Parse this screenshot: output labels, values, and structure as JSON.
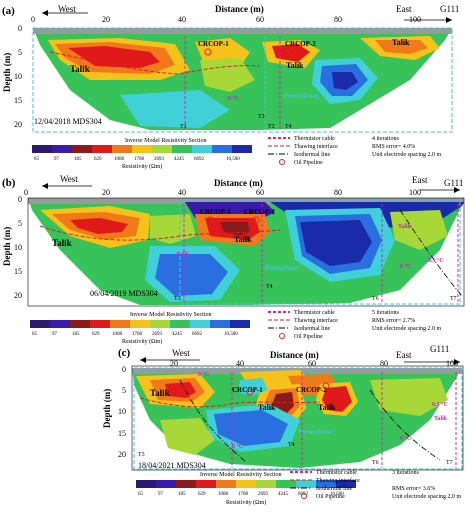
{
  "panels": [
    {
      "letter": "(a)",
      "west": "West",
      "east": "East",
      "line_id": "G111",
      "distance_label": "Distance (m)",
      "depth_label": "Depth (m)",
      "x_ticks": [
        "0",
        "20",
        "40",
        "60",
        "80",
        "100"
      ],
      "y_ticks": [
        "0",
        "5",
        "10",
        "15",
        "20"
      ],
      "date_label": "12/04/2018 MDS304",
      "section_title": "Inverse Model Resistivity Section",
      "resistivity_label": "Resistivity (Ωm)",
      "colorbar_ticks": [
        "65",
        "97",
        "185",
        "629",
        "1008",
        "1708",
        "2693",
        "4245",
        "6692",
        "10,500"
      ],
      "legend": {
        "thermistor": "Thermistor cable",
        "thawing": "Thawing interface",
        "isothermal": "Isothermal line",
        "pipeline": "Oil Pipeline"
      },
      "stats": [
        "4 iterations",
        "RMS error= 4.0%",
        "Unit electrode spacing 2.0 m"
      ],
      "annotations": {
        "crcop1": "CRCOP-1",
        "crcop2": "CRCOP-2",
        "talik": "Talik",
        "permafrost": "Permafrost",
        "zero_c": "0 °C"
      },
      "thermistors": [
        "T1",
        "T2",
        "T3",
        "T4"
      ]
    },
    {
      "letter": "(b)",
      "west": "West",
      "east": "East",
      "line_id": "G111",
      "distance_label": "Distance (m)",
      "depth_label": "Depth (m)",
      "x_ticks": [
        "0",
        "20",
        "40",
        "60",
        "80",
        "100"
      ],
      "y_ticks": [
        "0",
        "5",
        "10",
        "15",
        "20"
      ],
      "date_label": "06/04/2019 MDS304",
      "section_title": "Inverse Model Resistivity Section",
      "resistivity_label": "Resistivity (Ωm)",
      "colorbar_ticks": [
        "65",
        "97",
        "185",
        "629",
        "1008",
        "1708",
        "2693",
        "4245",
        "6692",
        "10,500"
      ],
      "legend": {
        "thermistor": "Thermistor cable",
        "thawing": "Thawing interface",
        "isothermal": "Isothermal line",
        "pipeline": "Oil Pipeline"
      },
      "stats": [
        "5 iterations",
        "RMS error= 2.7%",
        "Unit electrode spacing 2.0 m"
      ],
      "annotations": {
        "crcop1": "CRCOP-1",
        "crcop2": "CRCOP-2",
        "talik": "Talik",
        "permafrost": "Permafrost",
        "zero_c": "0 °C",
        "half_c": "0.5 °C"
      },
      "thermistors": [
        "T3",
        "T4",
        "T6",
        "T7"
      ]
    },
    {
      "letter": "(c)",
      "west": "West",
      "east": "East",
      "line_id": "G111",
      "distance_label": "Distance (m)",
      "depth_label": "Depth (m)",
      "x_ticks": [
        "20",
        "40",
        "60",
        "80",
        "100"
      ],
      "y_ticks": [
        "0",
        "5",
        "10",
        "15",
        "20"
      ],
      "date_label": "18/04/2021 MDS304",
      "section_title": "Inverse Model Resistivity Section",
      "resistivity_label": "Resistivity (Ωm)",
      "colorbar_ticks": [
        "65",
        "97",
        "185",
        "629",
        "1008",
        "1708",
        "2693",
        "4245",
        "6692",
        "10,500"
      ],
      "legend": {
        "thermistor": "Thermistor cable",
        "thawing": "Thawing interface",
        "isothermal": "Isothermal line",
        "pipeline": "Oil Pipeline"
      },
      "stats": [
        "3 iterations",
        "RMS error= 3.6%",
        "Unit electrode spacing 2.0 m"
      ],
      "annotations": {
        "crcop1": "CRCOP-1",
        "crcop2": "CRCOP-2",
        "talik": "Talik",
        "permafrost": "Permafrost",
        "zero_c": "0 °C",
        "half_c": "0.5 °C"
      },
      "thermistors": [
        "T3",
        "T4",
        "T6",
        "T7"
      ]
    }
  ],
  "colors": {
    "colorbar": [
      "#2b1a6e",
      "#3a1aa8",
      "#8b1a1a",
      "#e01a1a",
      "#f07a1a",
      "#f5c21a",
      "#a8d838",
      "#38c25a",
      "#3fd0d8",
      "#2a6fe0",
      "#1a2aa8"
    ],
    "ground_top": "#9a9a9a",
    "thermistor": "#d020c0",
    "thawing": "#d02020",
    "pipeline": "#e02020",
    "frame_dash": "#40c0e8"
  }
}
